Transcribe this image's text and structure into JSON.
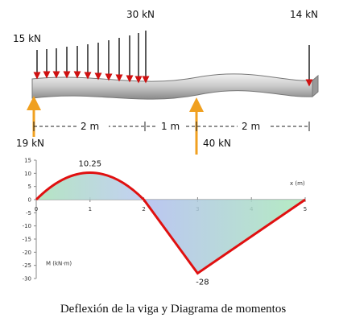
{
  "beam": {
    "loads": {
      "left": "15 kN",
      "peak": "30 kN",
      "right": "14 kN"
    },
    "reactions": {
      "left": "19 kN",
      "middle": "40 kN"
    },
    "spans": [
      "2 m",
      "1 m",
      "2 m"
    ]
  },
  "chart_data": {
    "type": "line",
    "x": [
      0,
      1,
      2,
      3,
      5
    ],
    "values": [
      0,
      10.25,
      0,
      -28,
      0
    ],
    "color": "#e01010",
    "x_label": "x (m)",
    "y_label": "M (kN·m)",
    "xlim": [
      0,
      5
    ],
    "ylim": [
      -30,
      15
    ],
    "xticks": [
      0,
      1,
      2,
      3,
      4,
      5
    ],
    "yticks": [
      15,
      10,
      5,
      0,
      -5,
      -10,
      -15,
      -20,
      -25,
      -30
    ]
  },
  "caption": "Deflexión de la viga y Diagrama de momentos"
}
